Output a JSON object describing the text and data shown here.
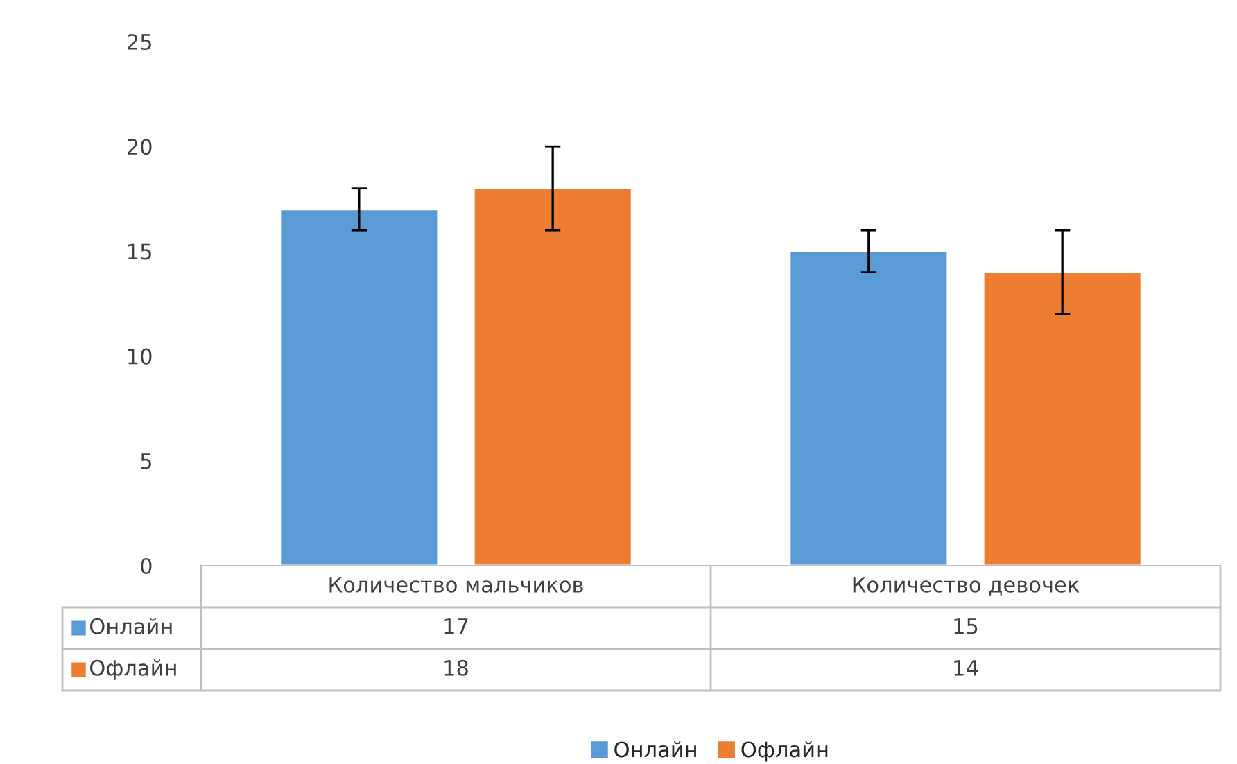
{
  "chart_data": {
    "type": "bar",
    "categories": [
      "Количество мальчиков",
      "Количество девочек"
    ],
    "series": [
      {
        "name": "Онлайн",
        "color": "#5b9bd5",
        "values": [
          17,
          15
        ],
        "errors": [
          1,
          1
        ]
      },
      {
        "name": "Офлайн",
        "color": "#ed7d31",
        "values": [
          18,
          14
        ],
        "errors": [
          2,
          2
        ]
      }
    ],
    "ylim": [
      0,
      25
    ],
    "yticks": [
      0,
      5,
      10,
      15,
      20,
      25
    ],
    "grid": false,
    "legend": "bottom",
    "data_labels": true
  }
}
